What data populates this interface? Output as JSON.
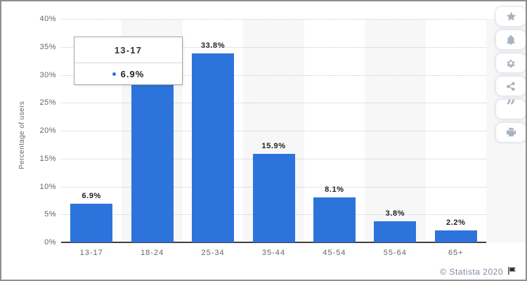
{
  "chart_data": {
    "type": "bar",
    "title": "",
    "xlabel": "",
    "ylabel": "Percentage of users",
    "ylim": [
      0,
      40
    ],
    "ytick_step": 5,
    "ytick_labels": [
      "0%",
      "5%",
      "10%",
      "15%",
      "20%",
      "25%",
      "30%",
      "35%",
      "40%"
    ],
    "grid": "dotted horizontal",
    "legend": "none",
    "categories": [
      "13-17",
      "18-24",
      "25-34",
      "35-44",
      "45-54",
      "55-64",
      "65+"
    ],
    "values": [
      6.9,
      29.3,
      33.8,
      15.9,
      8.1,
      3.8,
      2.2
    ],
    "data_labels": [
      "6.9%",
      null,
      "33.8%",
      "15.9%",
      "8.1%",
      "3.8%",
      "2.2%"
    ],
    "bar_color": "#2c74dc",
    "band_color": "#f7f7f8"
  },
  "tooltip": {
    "header": "13-17",
    "value": "6.9%",
    "marker_color": "#2c74dc"
  },
  "toolbar": {
    "icons": [
      "star",
      "bell",
      "gear",
      "share",
      "quote",
      "print"
    ]
  },
  "footer": {
    "copyright": "© Statista 2020",
    "flag_icon": "flag-icon"
  }
}
